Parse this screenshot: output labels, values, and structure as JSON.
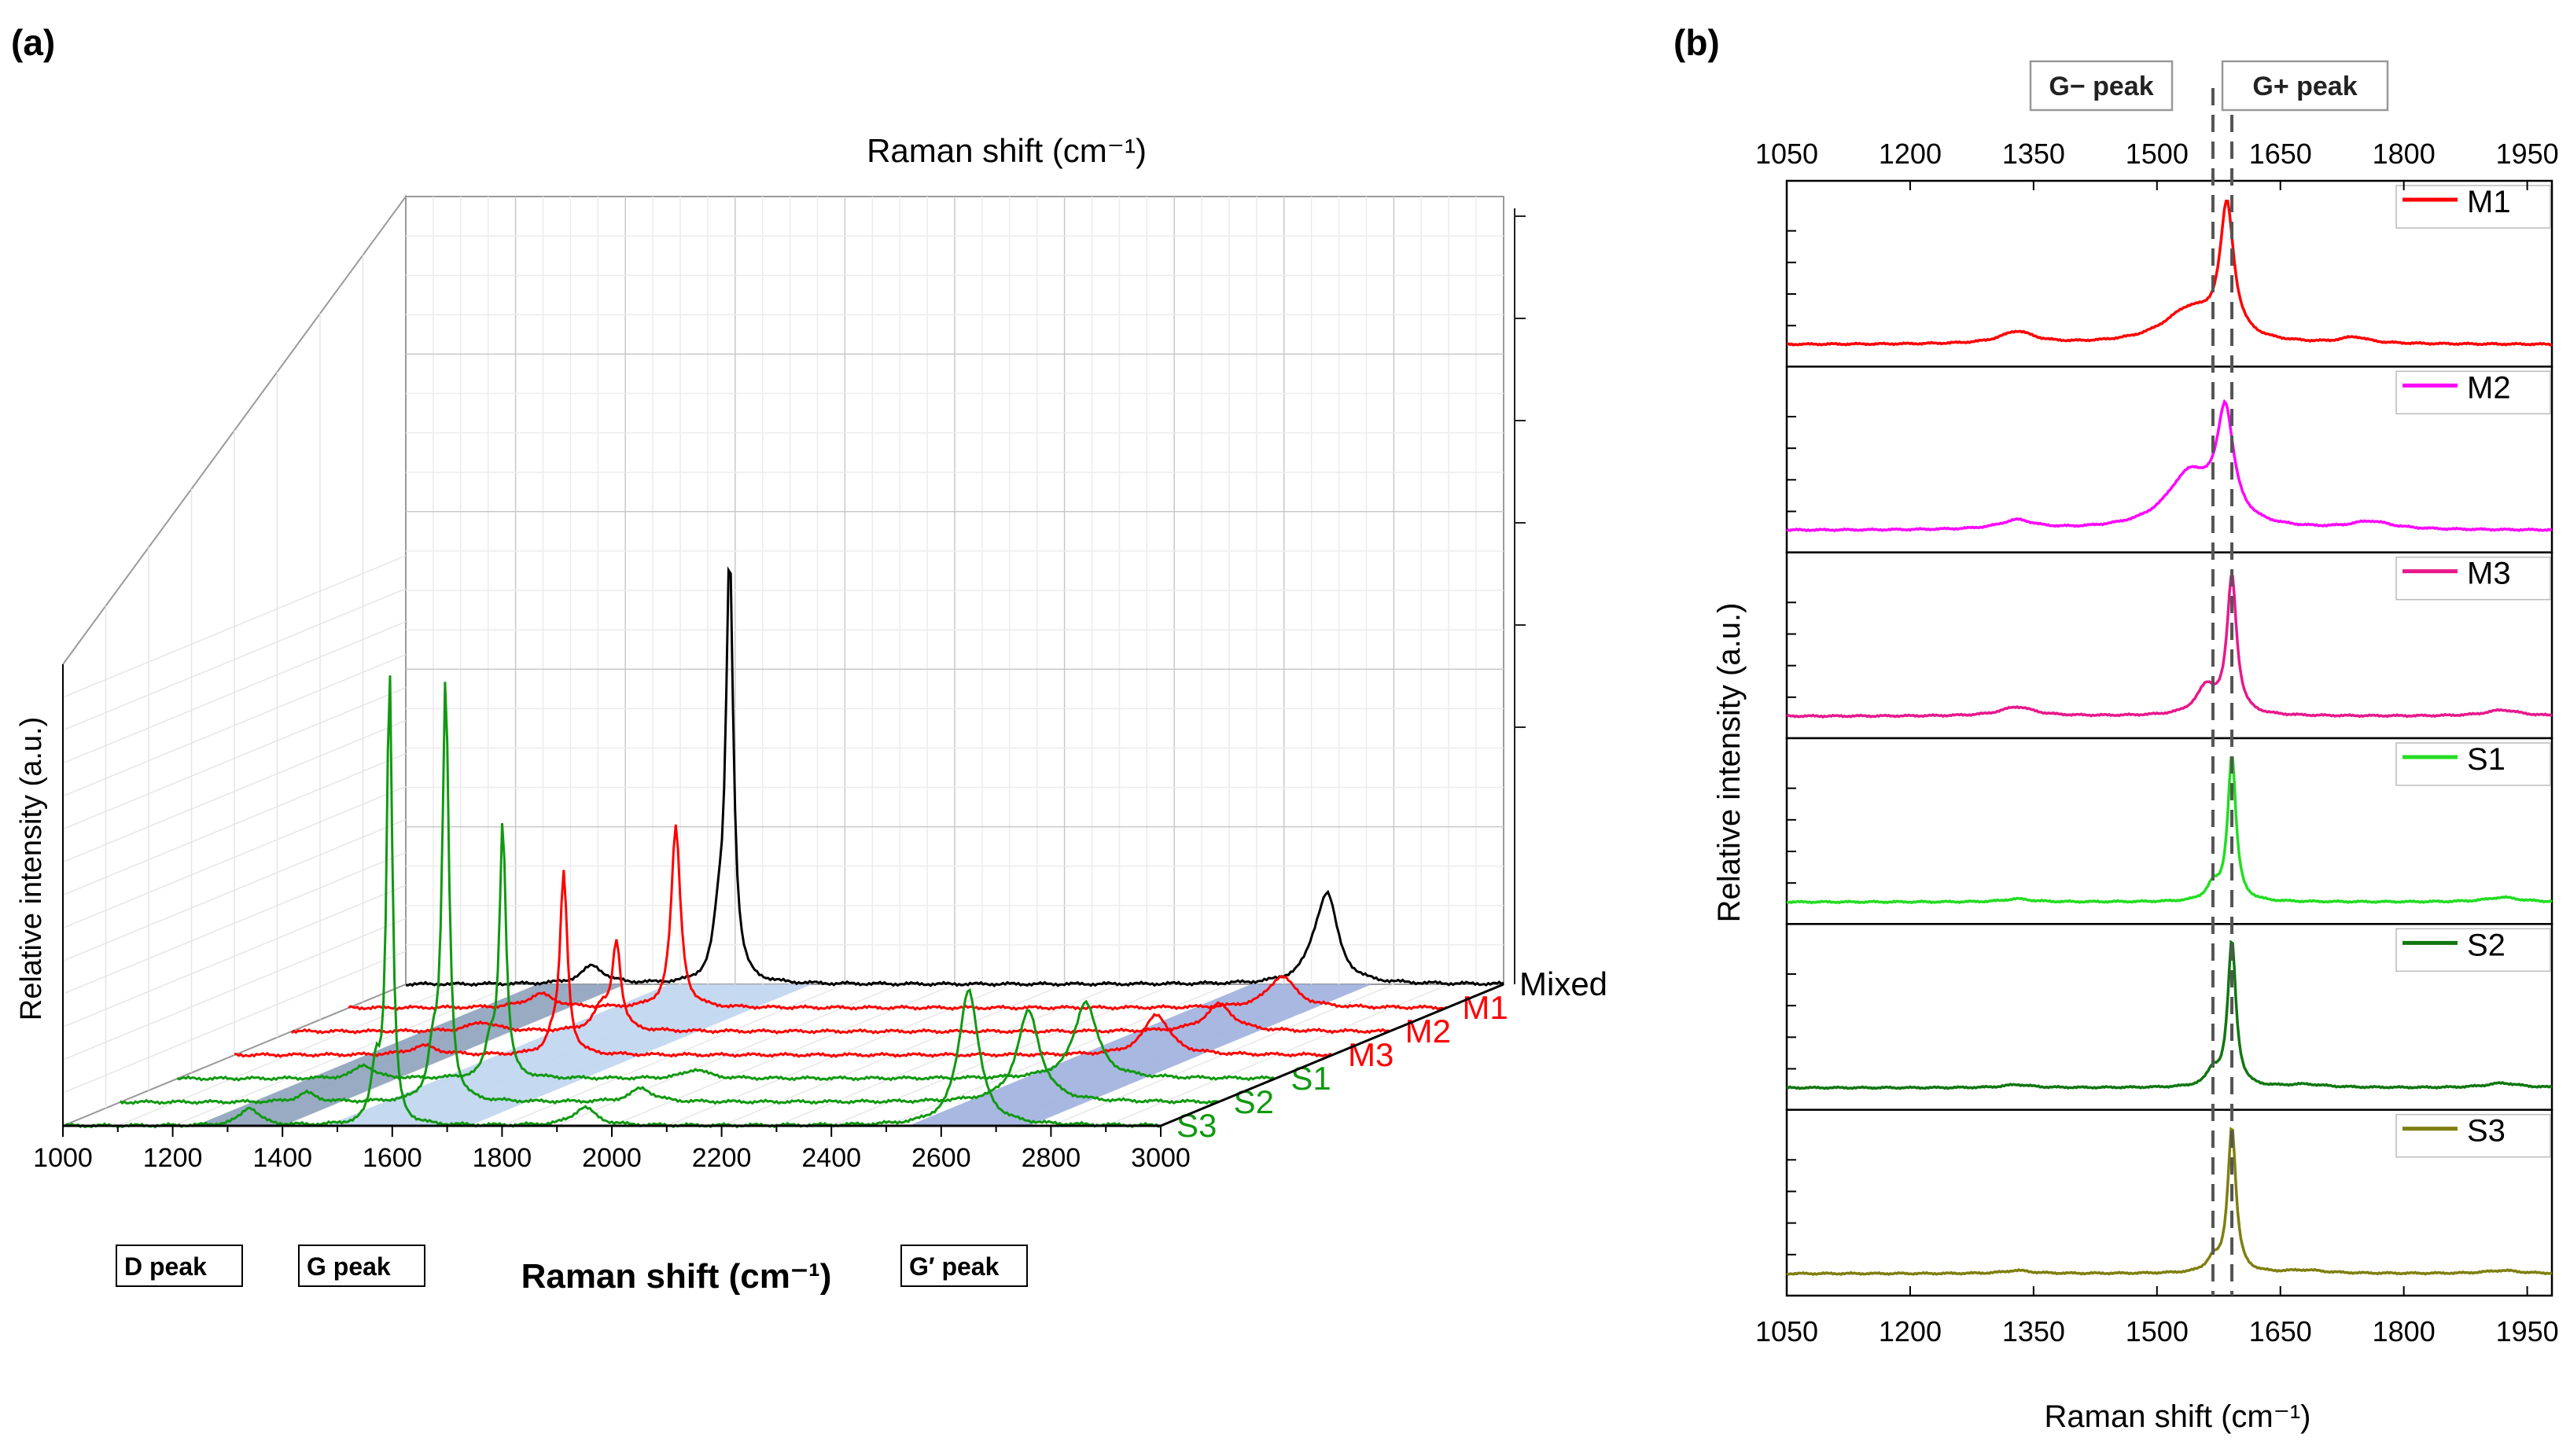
{
  "figure": {
    "panel_a_label": "(a)",
    "panel_b_label": "(b)"
  },
  "colors": {
    "Mixed": "#000000",
    "M1": "#ff0000",
    "M2": "#ff00ff",
    "M3": "#e8188c",
    "S1": "#22dd22",
    "S2": "#117711",
    "S3": "#7f7f10",
    "panel_a_metallic": "#ff0000",
    "panel_a_semiconducting": "#119911",
    "band_dark": "#8ea2bc",
    "band_light": "#bfd5ee",
    "band_blue": "#9fb0de"
  },
  "chart_data": [
    {
      "panel": "a",
      "type": "line",
      "style": "3d-waterfall",
      "top_axis_label": "Raman shift (cm⁻¹)",
      "xlabel": "Raman shift (cm⁻¹)",
      "ylabel": "Relative intensity (a.u.)",
      "xlim": [
        1000,
        3000
      ],
      "xticks": [
        "1000",
        "1200",
        "1400",
        "1600",
        "1800",
        "2000",
        "2200",
        "2400",
        "2600",
        "2800",
        "3000"
      ],
      "series_order": [
        "S3",
        "S2",
        "S1",
        "M3",
        "M2",
        "M1",
        "Mixed"
      ],
      "series": [
        {
          "name": "Mixed",
          "label": "Mixed",
          "group": "mixed",
          "peaks": [
            {
              "x": 1340,
              "h": 0.04,
              "w": 25
            },
            {
              "x": 1570,
              "h": 0.11,
              "w": 12
            },
            {
              "x": 1590,
              "h": 0.93,
              "w": 8
            },
            {
              "x": 2660,
              "h": 0.05,
              "w": 25
            },
            {
              "x": 2680,
              "h": 0.17,
              "w": 22
            }
          ]
        },
        {
          "name": "M1",
          "label": "M1",
          "group": "metallic",
          "peaks": [
            {
              "x": 1350,
              "h": 0.03,
              "w": 30
            },
            {
              "x": 1596,
              "h": 0.4,
              "w": 10
            },
            {
              "x": 2700,
              "h": 0.07,
              "w": 30
            }
          ]
        },
        {
          "name": "M2",
          "label": "M2",
          "group": "metallic",
          "peaks": [
            {
              "x": 1348,
              "h": 0.02,
              "w": 30
            },
            {
              "x": 1565,
              "h": 0.05,
              "w": 18
            },
            {
              "x": 1592,
              "h": 0.19,
              "w": 9
            },
            {
              "x": 2690,
              "h": 0.06,
              "w": 30
            }
          ]
        },
        {
          "name": "M3",
          "label": "M3",
          "group": "metallic",
          "peaks": [
            {
              "x": 1345,
              "h": 0.02,
              "w": 30
            },
            {
              "x": 1578,
              "h": 0.03,
              "w": 12
            },
            {
              "x": 1600,
              "h": 0.4,
              "w": 8
            },
            {
              "x": 2680,
              "h": 0.09,
              "w": 28
            }
          ]
        },
        {
          "name": "S1",
          "label": "S1",
          "group": "semiconducting",
          "peaks": [
            {
              "x": 1340,
              "h": 0.03,
              "w": 20
            },
            {
              "x": 1570,
              "h": 0.07,
              "w": 10
            },
            {
              "x": 1593,
              "h": 0.56,
              "w": 7
            },
            {
              "x": 1945,
              "h": 0.02,
              "w": 25
            },
            {
              "x": 2655,
              "h": 0.17,
              "w": 25
            }
          ]
        },
        {
          "name": "S2",
          "label": "S2",
          "group": "semiconducting",
          "peaks": [
            {
              "x": 1340,
              "h": 0.02,
              "w": 20
            },
            {
              "x": 1570,
              "h": 0.1,
              "w": 10
            },
            {
              "x": 1593,
              "h": 0.92,
              "w": 7
            },
            {
              "x": 1950,
              "h": 0.03,
              "w": 25
            },
            {
              "x": 2655,
              "h": 0.2,
              "w": 25
            }
          ]
        },
        {
          "name": "S3",
          "label": "S3",
          "group": "semiconducting",
          "peaks": [
            {
              "x": 1340,
              "h": 0.04,
              "w": 20
            },
            {
              "x": 1570,
              "h": 0.12,
              "w": 10
            },
            {
              "x": 1595,
              "h": 1.0,
              "w": 6
            },
            {
              "x": 1950,
              "h": 0.04,
              "w": 25
            },
            {
              "x": 2650,
              "h": 0.3,
              "w": 22
            }
          ]
        }
      ],
      "bands": [
        {
          "label": "D peak",
          "from": 1240,
          "to": 1400
        },
        {
          "label": "G peak",
          "from": 1480,
          "to": 1740
        },
        {
          "label": "G′ peak",
          "from": 2540,
          "to": 2760
        }
      ]
    },
    {
      "panel": "b",
      "type": "line",
      "style": "stacked",
      "xlabel": "Raman shift (cm⁻¹)",
      "ylabel": "Relative intensity (a.u.)",
      "xlim": [
        1050,
        1980
      ],
      "xticks": [
        "1050",
        "1200",
        "1350",
        "1500",
        "1650",
        "1800",
        "1950"
      ],
      "reference_lines": [
        {
          "label": "G− peak",
          "x": 1568
        },
        {
          "label": "G+ peak",
          "x": 1591
        }
      ],
      "series": [
        {
          "name": "M1",
          "label": "M1",
          "peaks": [
            {
              "x": 1330,
              "h": 0.08,
              "w": 25
            },
            {
              "x": 1540,
              "h": 0.22,
              "w": 40
            },
            {
              "x": 1585,
              "h": 0.85,
              "w": 10
            },
            {
              "x": 1740,
              "h": 0.04,
              "w": 20
            }
          ]
        },
        {
          "name": "M2",
          "label": "M2",
          "peaks": [
            {
              "x": 1330,
              "h": 0.06,
              "w": 25
            },
            {
              "x": 1540,
              "h": 0.36,
              "w": 35
            },
            {
              "x": 1583,
              "h": 0.7,
              "w": 12
            },
            {
              "x": 1760,
              "h": 0.05,
              "w": 30
            }
          ]
        },
        {
          "name": "M3",
          "label": "M3",
          "peaks": [
            {
              "x": 1330,
              "h": 0.06,
              "w": 25
            },
            {
              "x": 1560,
              "h": 0.18,
              "w": 15
            },
            {
              "x": 1591,
              "h": 0.9,
              "w": 7
            },
            {
              "x": 1920,
              "h": 0.04,
              "w": 25
            }
          ]
        },
        {
          "name": "S1",
          "label": "S1",
          "peaks": [
            {
              "x": 1330,
              "h": 0.02,
              "w": 20
            },
            {
              "x": 1568,
              "h": 0.1,
              "w": 9
            },
            {
              "x": 1591,
              "h": 0.96,
              "w": 6
            },
            {
              "x": 1920,
              "h": 0.03,
              "w": 25
            }
          ]
        },
        {
          "name": "S2",
          "label": "S2",
          "peaks": [
            {
              "x": 1330,
              "h": 0.02,
              "w": 20
            },
            {
              "x": 1568,
              "h": 0.1,
              "w": 9
            },
            {
              "x": 1591,
              "h": 0.96,
              "w": 6
            },
            {
              "x": 1680,
              "h": 0.02,
              "w": 30
            },
            {
              "x": 1920,
              "h": 0.03,
              "w": 25
            }
          ]
        },
        {
          "name": "S3",
          "label": "S3",
          "peaks": [
            {
              "x": 1330,
              "h": 0.02,
              "w": 20
            },
            {
              "x": 1568,
              "h": 0.08,
              "w": 9
            },
            {
              "x": 1591,
              "h": 0.96,
              "w": 6
            },
            {
              "x": 1680,
              "h": 0.02,
              "w": 30
            },
            {
              "x": 1920,
              "h": 0.02,
              "w": 25
            }
          ]
        }
      ]
    }
  ]
}
